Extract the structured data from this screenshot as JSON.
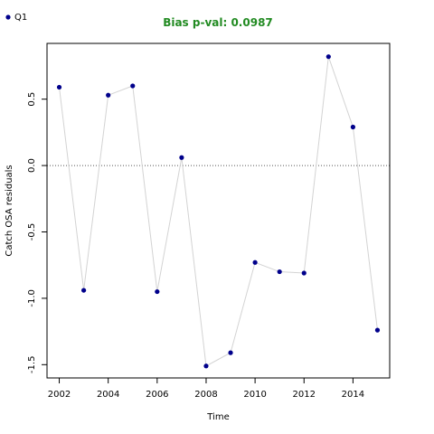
{
  "chart_data": {
    "type": "line",
    "title": "Bias p-val: 0.0987",
    "title_color": "#228B22",
    "xlabel": "Time",
    "ylabel": "Catch OSA residuals",
    "xlim": [
      2001.5,
      2015.5
    ],
    "ylim": [
      -1.6,
      0.92
    ],
    "xticks": [
      2002,
      2004,
      2006,
      2008,
      2010,
      2012,
      2014
    ],
    "yticks": [
      -1.5,
      -1.0,
      -0.5,
      0.0,
      0.5
    ],
    "ytick_labels": [
      "-1.5",
      "-1.0",
      "-0.5",
      "0.0",
      "0.5"
    ],
    "reference_line": 0.0,
    "grid": false,
    "legend_position": "top-left",
    "point_color": "#00008B",
    "line_color": "#d3d3d3",
    "series": [
      {
        "name": "Q1",
        "x": [
          2002,
          2003,
          2004,
          2005,
          2006,
          2007,
          2008,
          2009,
          2010,
          2011,
          2012,
          2013,
          2014,
          2015
        ],
        "y": [
          0.59,
          -0.94,
          0.53,
          0.6,
          -0.95,
          0.06,
          -1.51,
          -1.41,
          -0.73,
          -0.8,
          -0.81,
          0.82,
          0.29,
          -1.24
        ]
      }
    ]
  }
}
